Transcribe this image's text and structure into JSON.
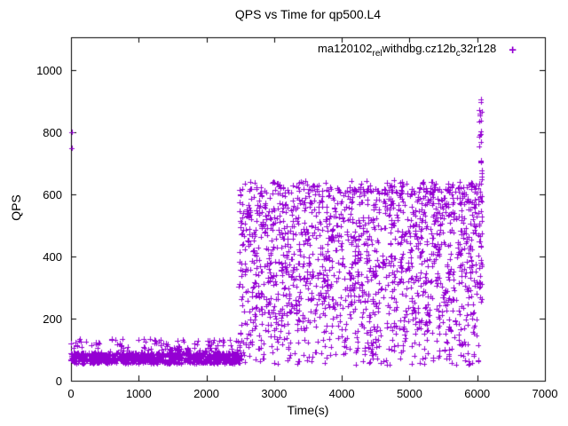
{
  "page": {
    "background": "#ffffff"
  },
  "chart_data": {
    "type": "scatter",
    "title": "QPS vs Time for qp500.L4",
    "xlabel": "Time(s)",
    "ylabel": "QPS",
    "xlim": [
      0,
      7000
    ],
    "ylim": [
      0,
      1105
    ],
    "xticks": [
      0,
      1000,
      2000,
      3000,
      4000,
      5000,
      6000,
      7000
    ],
    "yticks": [
      0,
      200,
      400,
      600,
      800,
      1000
    ],
    "grid": false,
    "legend_position": "top-right-inside",
    "series": [
      {
        "name": "ma120102_rel_withdbg.cz12b_c32r128",
        "name_parts": [
          {
            "text": "ma120102",
            "sub": false
          },
          {
            "text": "rel",
            "sub": true
          },
          {
            "text": "withdbg.cz12b",
            "sub": false
          },
          {
            "text": "c",
            "sub": true
          },
          {
            "text": "32r128",
            "sub": false
          }
        ],
        "marker": "plus",
        "marker_glyph": "+",
        "color": "#9400D3",
        "segments": [
          {
            "label": "baseline-phase",
            "t_min": 0,
            "t_max": 2520,
            "count": 950,
            "bands": [
              {
                "q_min": 55,
                "q_max": 90,
                "weight": 0.88
              },
              {
                "q_min": 90,
                "q_max": 135,
                "weight": 0.12
              }
            ]
          },
          {
            "label": "high-load-phase",
            "t_min": 2480,
            "t_max": 6020,
            "count": 1750,
            "bands": [
              {
                "q_min": 300,
                "q_max": 625,
                "weight": 0.6
              },
              {
                "q_min": 150,
                "q_max": 300,
                "weight": 0.22
              },
              {
                "q_min": 50,
                "q_max": 150,
                "weight": 0.1
              },
              {
                "q_min": 600,
                "q_max": 645,
                "weight": 0.08
              }
            ]
          },
          {
            "label": "end-spike",
            "t_min": 6025,
            "t_max": 6075,
            "count": 50,
            "bands": [
              {
                "q_min": 250,
                "q_max": 650,
                "weight": 0.55
              },
              {
                "q_min": 650,
                "q_max": 910,
                "weight": 0.45
              }
            ]
          }
        ],
        "outlier_points": [
          [
            8,
            750
          ],
          [
            16,
            800
          ],
          [
            4,
            120
          ],
          [
            2,
            65
          ],
          [
            6052,
            905
          ],
          [
            6048,
            860
          ],
          [
            6055,
            838
          ],
          [
            6050,
            795
          ]
        ]
      }
    ]
  }
}
